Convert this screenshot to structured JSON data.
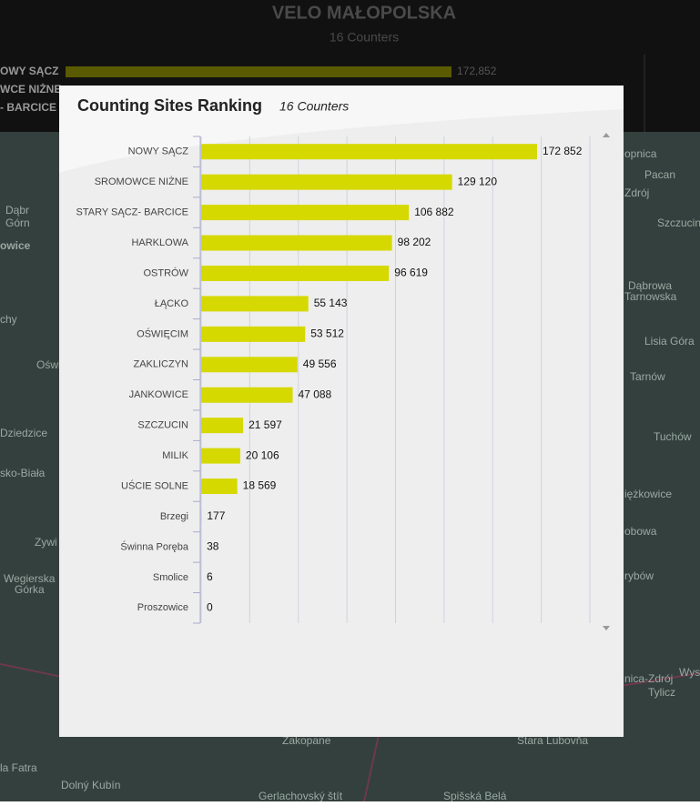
{
  "header": {
    "title": "VELO MAŁOPOLSKA",
    "subtitle": "16 Counters"
  },
  "background_ranking": {
    "labels": [
      "OWY SĄCZ",
      "WCE NIŻNE",
      "- BARCICE"
    ],
    "first_value_label": "172,852"
  },
  "map": {
    "labels": [
      "Dąbr",
      "Górn",
      "owice",
      "chy",
      "Oświ",
      "Dziedzice",
      "sko-Biała",
      "Zywi",
      "Wegierska",
      "Górka",
      "opnica",
      "Pacan",
      "Zdrój",
      "Szczucin",
      "Dąbrowa",
      "Tarnowska",
      "Lisia Góra",
      "Tarnów",
      "Tuchów",
      "iężkowice",
      "obowa",
      "rybów",
      "nica-Zdrój",
      "Tylicz",
      "Wys",
      "Stara Lubovňa",
      "Spišská Belá",
      "Zakopane",
      "Dolný Kubín",
      "la Fatra",
      "Gerlachovský štít"
    ]
  },
  "chart_data": {
    "type": "bar",
    "orientation": "horizontal",
    "title": "Counting Sites Ranking",
    "subtitle": "16 Counters",
    "categories": [
      "NOWY SĄCZ",
      "SROMOWCE NIŻNE",
      "STARY SĄCZ- BARCICE",
      "HARKLOWA",
      "OSTRÓW",
      "ŁĄCKO",
      "OŚWIĘCIM",
      "ZAKLICZYN",
      "JANKOWICE",
      "SZCZUCIN",
      "MILIK",
      "UŚCIE SOLNE",
      "Brzegi",
      "Świnna Poręba",
      "Smolice",
      "Proszowice"
    ],
    "values": [
      172852,
      129120,
      106882,
      98202,
      96619,
      55143,
      53512,
      49556,
      47088,
      21597,
      20106,
      18569,
      177,
      38,
      6,
      0
    ],
    "value_labels": [
      "172 852",
      "129 120",
      "106 882",
      "98 202",
      "96 619",
      "55 143",
      "53 512",
      "49 556",
      "47 088",
      "21 597",
      "20 106",
      "18 569",
      "177",
      "38",
      "6",
      "0"
    ],
    "color": "#d6d900",
    "xlim": [
      0,
      200000
    ],
    "xticks": [
      0,
      25000,
      50000,
      75000,
      100000,
      125000,
      150000,
      175000,
      200000
    ],
    "grid": true
  }
}
